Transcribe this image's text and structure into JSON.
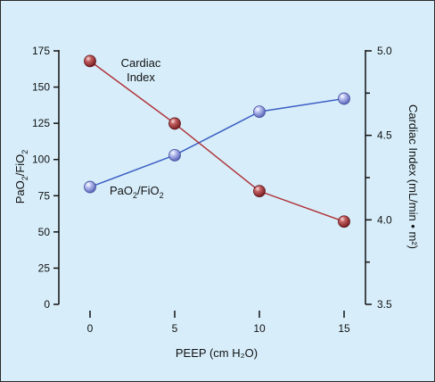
{
  "chart_data": {
    "type": "line",
    "x": [
      0,
      5,
      10,
      15
    ],
    "xlabel": "PEEP (cm H₂O)",
    "xticks": [
      "0",
      "5",
      "10",
      "15"
    ],
    "y_left": {
      "label_main": "PaO",
      "label_sub": "2",
      "label_end": "/FiO",
      "label_sub2": "2",
      "range": [
        0,
        175
      ],
      "ticks": [
        "0",
        "25",
        "50",
        "75",
        "100",
        "125",
        "150",
        "175"
      ]
    },
    "y_right": {
      "label": "Cardiac Index (mL/min • m²)",
      "range": [
        3.5,
        5.0
      ],
      "ticks": [
        "3.5",
        "4.0",
        "4.5",
        "5.0"
      ]
    },
    "series": [
      {
        "name": "PaO₂/FiO₂",
        "axis": "left",
        "values": [
          81,
          103,
          133,
          142
        ],
        "color": "#3d5fc4",
        "marker_color": "#8f9be0"
      },
      {
        "name_line1": "Cardiac",
        "name_line2": "Index",
        "axis": "right",
        "values": [
          4.94,
          4.57,
          4.17,
          3.99
        ],
        "color": "#b0343a",
        "marker_color": "#b64a4a"
      }
    ],
    "annotations": {
      "pao2_label_main": "PaO",
      "pao2_label_sub": "2",
      "pao2_label_end": "/FiO",
      "pao2_label_sub2": "2"
    }
  }
}
